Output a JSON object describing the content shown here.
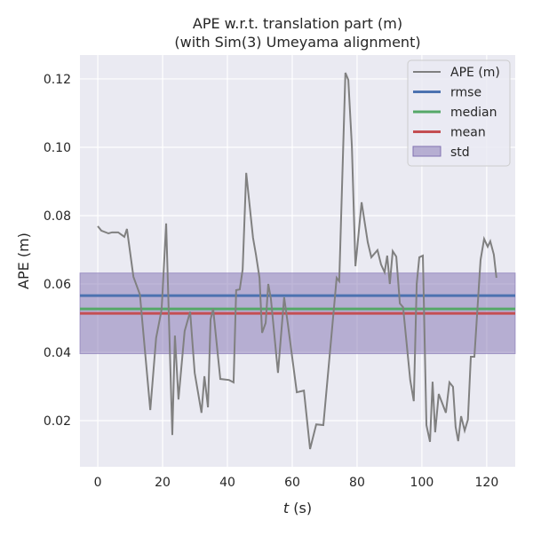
{
  "chart_data": {
    "type": "line",
    "title": "APE w.r.t. translation part (m)",
    "subtitle": "(with Sim(3) Umeyama alignment)",
    "xlabel_var": "t",
    "xlabel_unit": " (s)",
    "ylabel": "APE (m)",
    "xlim": [
      -5.5,
      128.8
    ],
    "ylim": [
      0.0065,
      0.127
    ],
    "xticks": [
      0,
      20,
      40,
      60,
      80,
      100,
      120
    ],
    "yticks": [
      0.02,
      0.04,
      0.06,
      0.08,
      0.1,
      0.12
    ],
    "ytick_labels": [
      "0.02",
      "0.04",
      "0.06",
      "0.08",
      "0.10",
      "0.12"
    ],
    "grid": true,
    "legend_placement": "top-right",
    "legend": [
      "APE (m)",
      "rmse",
      "median",
      "mean",
      "std"
    ],
    "colors": {
      "ape": "#808080",
      "rmse": "#4c72b0",
      "median": "#55a868",
      "mean": "#c44e52",
      "std": "#8172b2",
      "background": "#eaeaf2"
    },
    "stats": {
      "rmse": 0.0566,
      "median": 0.0527,
      "mean": 0.0514,
      "std": 0.0118
    },
    "series": [
      {
        "name": "APE (m)",
        "x": [
          0,
          1.1,
          3.3,
          4.4,
          6.3,
          8.2,
          9,
          11,
          13,
          16.2,
          18,
          19.7,
          21.1,
          23,
          23.8,
          24.9,
          26.8,
          28.5,
          29.9,
          32,
          32.9,
          34,
          34.8,
          35.6,
          37.8,
          40.5,
          41.9,
          42.7,
          43.8,
          44.7,
          45.8,
          47.9,
          48.8,
          49.9,
          50.7,
          51.8,
          52.6,
          53.4,
          55.6,
          57.5,
          58.6,
          61.4,
          63.6,
          65.5,
          67.4,
          69.6,
          72.9,
          73.7,
          74.5,
          76.4,
          77.3,
          78.4,
          79.5,
          81.4,
          83.3,
          84.4,
          86.3,
          87.4,
          88.5,
          89.3,
          90.1,
          91,
          92.1,
          93.2,
          94.2,
          96.4,
          97.5,
          98.4,
          99.2,
          100.3,
          101.4,
          102.5,
          103.3,
          104.1,
          105.2,
          107.4,
          108.5,
          109.6,
          110.4,
          111.2,
          112.1,
          113.2,
          114.2,
          115.1,
          116.2,
          118.1,
          119.2,
          120.3,
          121.1,
          122.2,
          123
        ],
        "y": [
          0.0769,
          0.0756,
          0.0748,
          0.0751,
          0.0751,
          0.0738,
          0.0761,
          0.0621,
          0.0569,
          0.0231,
          0.0442,
          0.0525,
          0.0777,
          0.0158,
          0.0449,
          0.0262,
          0.0462,
          0.0519,
          0.034,
          0.0223,
          0.033,
          0.0239,
          0.0496,
          0.0527,
          0.0322,
          0.0319,
          0.0312,
          0.0582,
          0.0584,
          0.0642,
          0.0925,
          0.0735,
          0.0686,
          0.0618,
          0.0457,
          0.0486,
          0.06,
          0.0558,
          0.034,
          0.0561,
          0.0486,
          0.0283,
          0.0288,
          0.0117,
          0.0189,
          0.0187,
          0.0533,
          0.0618,
          0.0608,
          0.1218,
          0.1197,
          0.1003,
          0.0652,
          0.0839,
          0.0722,
          0.0678,
          0.0699,
          0.0657,
          0.0634,
          0.0683,
          0.06,
          0.0696,
          0.068,
          0.0543,
          0.0532,
          0.0319,
          0.0257,
          0.06,
          0.0678,
          0.0683,
          0.0187,
          0.0138,
          0.0314,
          0.0166,
          0.0278,
          0.0223,
          0.0312,
          0.0299,
          0.0182,
          0.014,
          0.0213,
          0.0171,
          0.0203,
          0.0387,
          0.0387,
          0.067,
          0.0732,
          0.0709,
          0.0725,
          0.0686,
          0.0618
        ]
      }
    ]
  }
}
